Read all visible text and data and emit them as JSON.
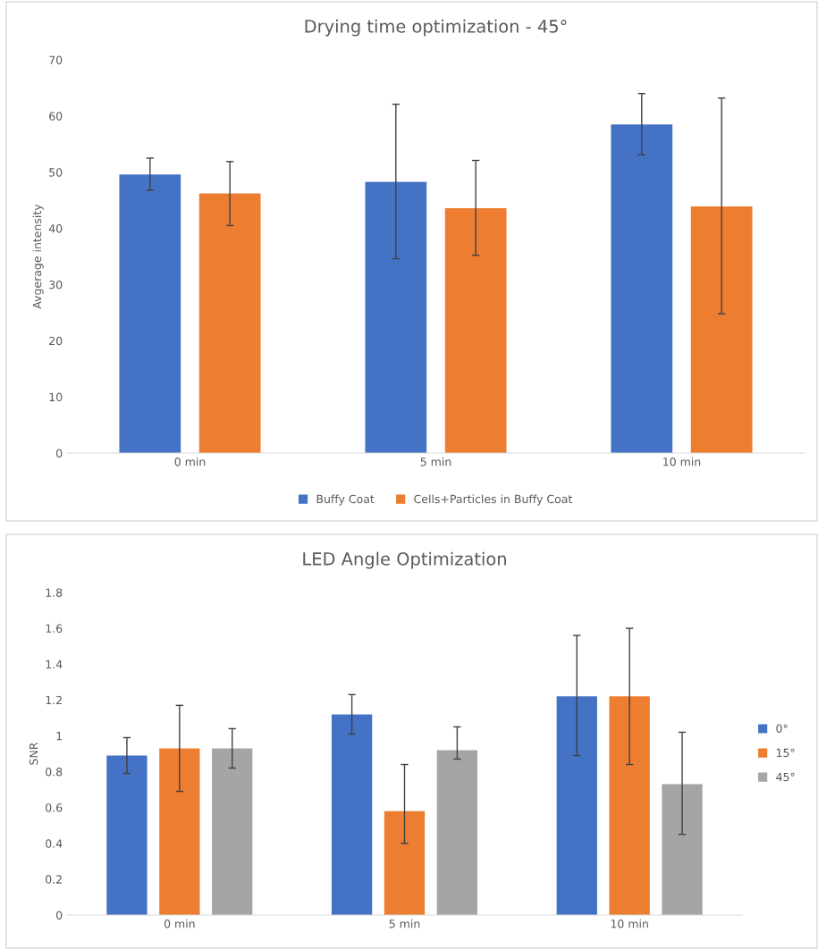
{
  "chart_data": [
    {
      "type": "bar",
      "title": "Drying time optimization - 45°",
      "ylabel": "Avgerage intensity",
      "categories": [
        "0 min",
        "5 min",
        "10 min"
      ],
      "ylim": [
        0,
        70
      ],
      "yticks": [
        0,
        10,
        20,
        30,
        40,
        50,
        60,
        70
      ],
      "grid": false,
      "legend": "bottom",
      "series": [
        {
          "name": "Buffy Coat",
          "color": "#4472c4",
          "values": [
            49.6,
            48.3,
            58.5
          ],
          "errors": [
            [
              46.8,
              52.5
            ],
            [
              34.6,
              62.1
            ],
            [
              53.1,
              64.0
            ]
          ]
        },
        {
          "name": "Cells+Particles in Buffy Coat",
          "color": "#ed7d31",
          "values": [
            46.2,
            43.6,
            43.9
          ],
          "errors": [
            [
              40.5,
              51.9
            ],
            [
              35.2,
              52.1
            ],
            [
              24.8,
              63.2
            ]
          ]
        }
      ]
    },
    {
      "type": "bar",
      "title": "LED Angle Optimization",
      "ylabel": "SNR",
      "categories": [
        "0 min",
        "5 min",
        "10 min"
      ],
      "ylim": [
        0,
        1.8
      ],
      "yticks": [
        0,
        {
          "value": 0.2,
          "label": "0.2"
        },
        {
          "value": 0.4,
          "label": "0.4"
        },
        {
          "value": 0.6,
          "label": "0.6"
        },
        {
          "value": 0.8,
          "label": "0.8"
        },
        1,
        {
          "value": 1.2,
          "label": "1.2"
        },
        {
          "value": 1.4,
          "label": "1.4"
        },
        {
          "value": 1.6,
          "label": "1.6"
        },
        {
          "value": 1.8,
          "label": "1.8"
        }
      ],
      "grid": false,
      "legend": "right",
      "series": [
        {
          "name": "0°",
          "color": "#4472c4",
          "values": [
            0.89,
            1.12,
            1.22
          ],
          "errors": [
            [
              0.79,
              0.99
            ],
            [
              1.01,
              1.23
            ],
            [
              0.89,
              1.56
            ]
          ]
        },
        {
          "name": "15°",
          "color": "#ed7d31",
          "values": [
            0.93,
            0.58,
            1.22
          ],
          "errors": [
            [
              0.69,
              1.17
            ],
            [
              0.4,
              0.84
            ],
            [
              0.84,
              1.6
            ]
          ]
        },
        {
          "name": "45°",
          "color": "#a5a5a5",
          "values": [
            0.93,
            0.92,
            0.73
          ],
          "errors": [
            [
              0.82,
              1.04
            ],
            [
              0.87,
              1.05
            ],
            [
              0.45,
              1.02
            ]
          ]
        }
      ]
    }
  ]
}
